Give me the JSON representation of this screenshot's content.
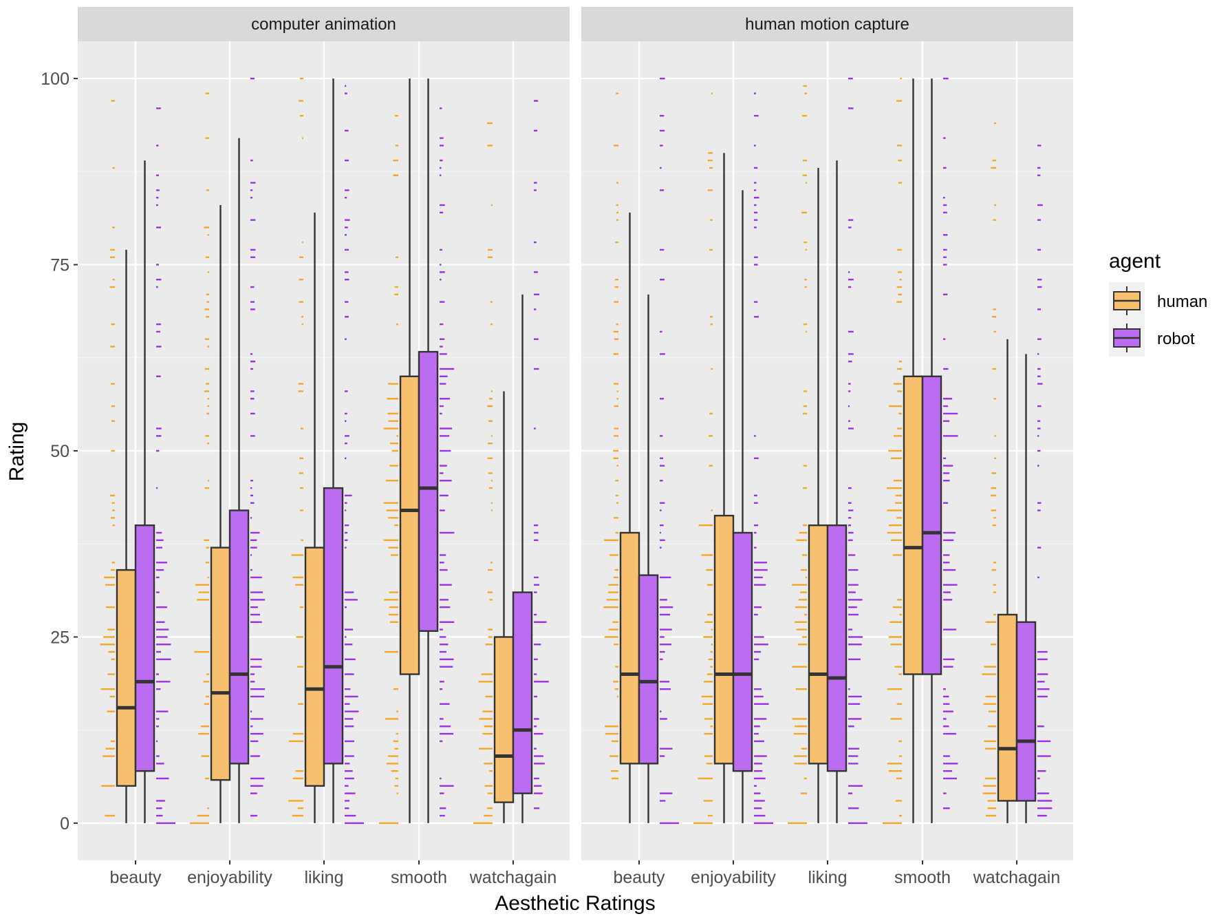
{
  "chart_data": {
    "type": "boxplot",
    "xlabel": "Aesthetic Ratings",
    "ylabel": "Rating",
    "ylim": [
      -5,
      105
    ],
    "yticks": [
      0,
      25,
      50,
      75,
      100
    ],
    "grid": true,
    "legend": {
      "title": "agent",
      "placement": "right",
      "entries": [
        {
          "name": "human",
          "fill": "#f6c06f",
          "dot_color": "#f5a623"
        },
        {
          "name": "robot",
          "fill": "#bb6cf0",
          "dot_color": "#9b30e8"
        }
      ]
    },
    "categories": [
      "beauty",
      "enjoyability",
      "liking",
      "smooth",
      "watchagain"
    ],
    "panels": [
      {
        "title": "computer animation",
        "boxes": {
          "human": [
            {
              "category": "beauty",
              "min": 0,
              "q1": 5,
              "median": 15.5,
              "q3": 34,
              "max": 77
            },
            {
              "category": "enjoyability",
              "min": 0,
              "q1": 5.8,
              "median": 17.5,
              "q3": 37,
              "max": 83
            },
            {
              "category": "liking",
              "min": 0,
              "q1": 5,
              "median": 18,
              "q3": 37,
              "max": 82
            },
            {
              "category": "smooth",
              "min": 0,
              "q1": 20,
              "median": 42,
              "q3": 60,
              "max": 100
            },
            {
              "category": "watchagain",
              "min": 0,
              "q1": 2.8,
              "median": 9,
              "q3": 25,
              "max": 58
            }
          ],
          "robot": [
            {
              "category": "beauty",
              "min": 0,
              "q1": 7,
              "median": 19,
              "q3": 40,
              "max": 89
            },
            {
              "category": "enjoyability",
              "min": 0,
              "q1": 8,
              "median": 20,
              "q3": 42,
              "max": 92
            },
            {
              "category": "liking",
              "min": 0,
              "q1": 8,
              "median": 21,
              "q3": 45,
              "max": 100
            },
            {
              "category": "smooth",
              "min": 0,
              "q1": 25.8,
              "median": 45,
              "q3": 63.3,
              "max": 100
            },
            {
              "category": "watchagain",
              "min": 0,
              "q1": 4,
              "median": 12.5,
              "q3": 31,
              "max": 71
            }
          ]
        }
      },
      {
        "title": "human motion capture",
        "boxes": {
          "human": [
            {
              "category": "beauty",
              "min": 0,
              "q1": 8,
              "median": 20,
              "q3": 39,
              "max": 82
            },
            {
              "category": "enjoyability",
              "min": 0,
              "q1": 8,
              "median": 20,
              "q3": 41.3,
              "max": 90
            },
            {
              "category": "liking",
              "min": 0,
              "q1": 8,
              "median": 20,
              "q3": 40,
              "max": 88
            },
            {
              "category": "smooth",
              "min": 0,
              "q1": 20,
              "median": 37,
              "q3": 60,
              "max": 100
            },
            {
              "category": "watchagain",
              "min": 0,
              "q1": 3,
              "median": 10,
              "q3": 28,
              "max": 65
            }
          ],
          "robot": [
            {
              "category": "beauty",
              "min": 0,
              "q1": 8,
              "median": 19,
              "q3": 33.3,
              "max": 71
            },
            {
              "category": "enjoyability",
              "min": 0,
              "q1": 7,
              "median": 20,
              "q3": 39,
              "max": 85
            },
            {
              "category": "liking",
              "min": 0,
              "q1": 7,
              "median": 19.5,
              "q3": 40,
              "max": 89
            },
            {
              "category": "smooth",
              "min": 0,
              "q1": 20,
              "median": 39,
              "q3": 60,
              "max": 100
            },
            {
              "category": "watchagain",
              "min": 0,
              "q1": 3,
              "median": 11,
              "q3": 27,
              "max": 63
            }
          ]
        }
      }
    ]
  }
}
